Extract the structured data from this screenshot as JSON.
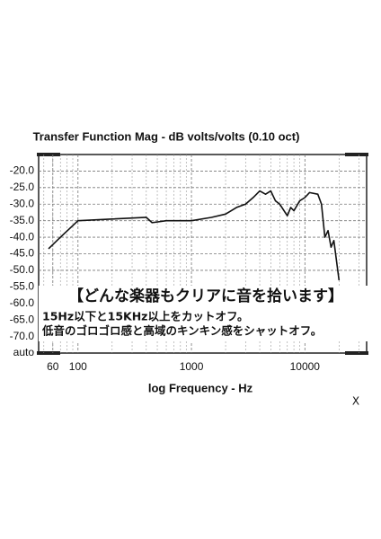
{
  "chart_data": {
    "type": "line",
    "title": "Transfer Function Mag - dB volts/volts (0.10 oct)",
    "x_label": "log Frequency - Hz",
    "log_x": true,
    "grid": true,
    "xlim": [
      45,
      35000
    ],
    "xticks": [
      60,
      100,
      1000,
      10000
    ],
    "ylim": [
      -75,
      -15
    ],
    "yticks": [
      {
        "value": -20,
        "label": "-20.0"
      },
      {
        "value": -25,
        "label": "-25.0"
      },
      {
        "value": -30,
        "label": "-30.0"
      },
      {
        "value": -35,
        "label": "-35.0"
      },
      {
        "value": -40,
        "label": "-40.0"
      },
      {
        "value": -45,
        "label": "-45.0"
      },
      {
        "value": -50,
        "label": "-50.0"
      },
      {
        "value": -55,
        "label": "-55.0"
      },
      {
        "value": -60,
        "label": "-60.0"
      },
      {
        "value": -65,
        "label": "-65.0"
      },
      {
        "value": -70,
        "label": "-70.0"
      },
      {
        "value": -75,
        "label": "auto"
      }
    ],
    "x": [
      55,
      70,
      100,
      200,
      400,
      450,
      600,
      800,
      1000,
      1500,
      2000,
      2500,
      3000,
      3500,
      4000,
      4500,
      5000,
      5500,
      6000,
      7000,
      7500,
      8000,
      9000,
      10000,
      11000,
      13000,
      14000,
      15000,
      16000,
      17000,
      18000,
      20000
    ],
    "series": [
      {
        "color": "#111111",
        "values": [
          -43.5,
          -40,
          -35,
          -34.5,
          -34,
          -35.6,
          -35,
          -35,
          -35,
          -34,
          -33,
          -31,
          -30,
          -28,
          -26,
          -27,
          -26,
          -29,
          -30,
          -33.5,
          -31,
          -32,
          -29,
          -28,
          -26.5,
          -27,
          -30,
          -40,
          -38,
          -43,
          -41,
          -53
        ]
      }
    ]
  },
  "overlay": {
    "heading": "【どんな楽器もクリアに音を拾います】",
    "lines": [
      "15Hz以下と15KHz以上をカットオフ。",
      "低音のゴロゴロ感と高域のキンキン感をシャットオフ。"
    ]
  },
  "corner_mark": "X"
}
